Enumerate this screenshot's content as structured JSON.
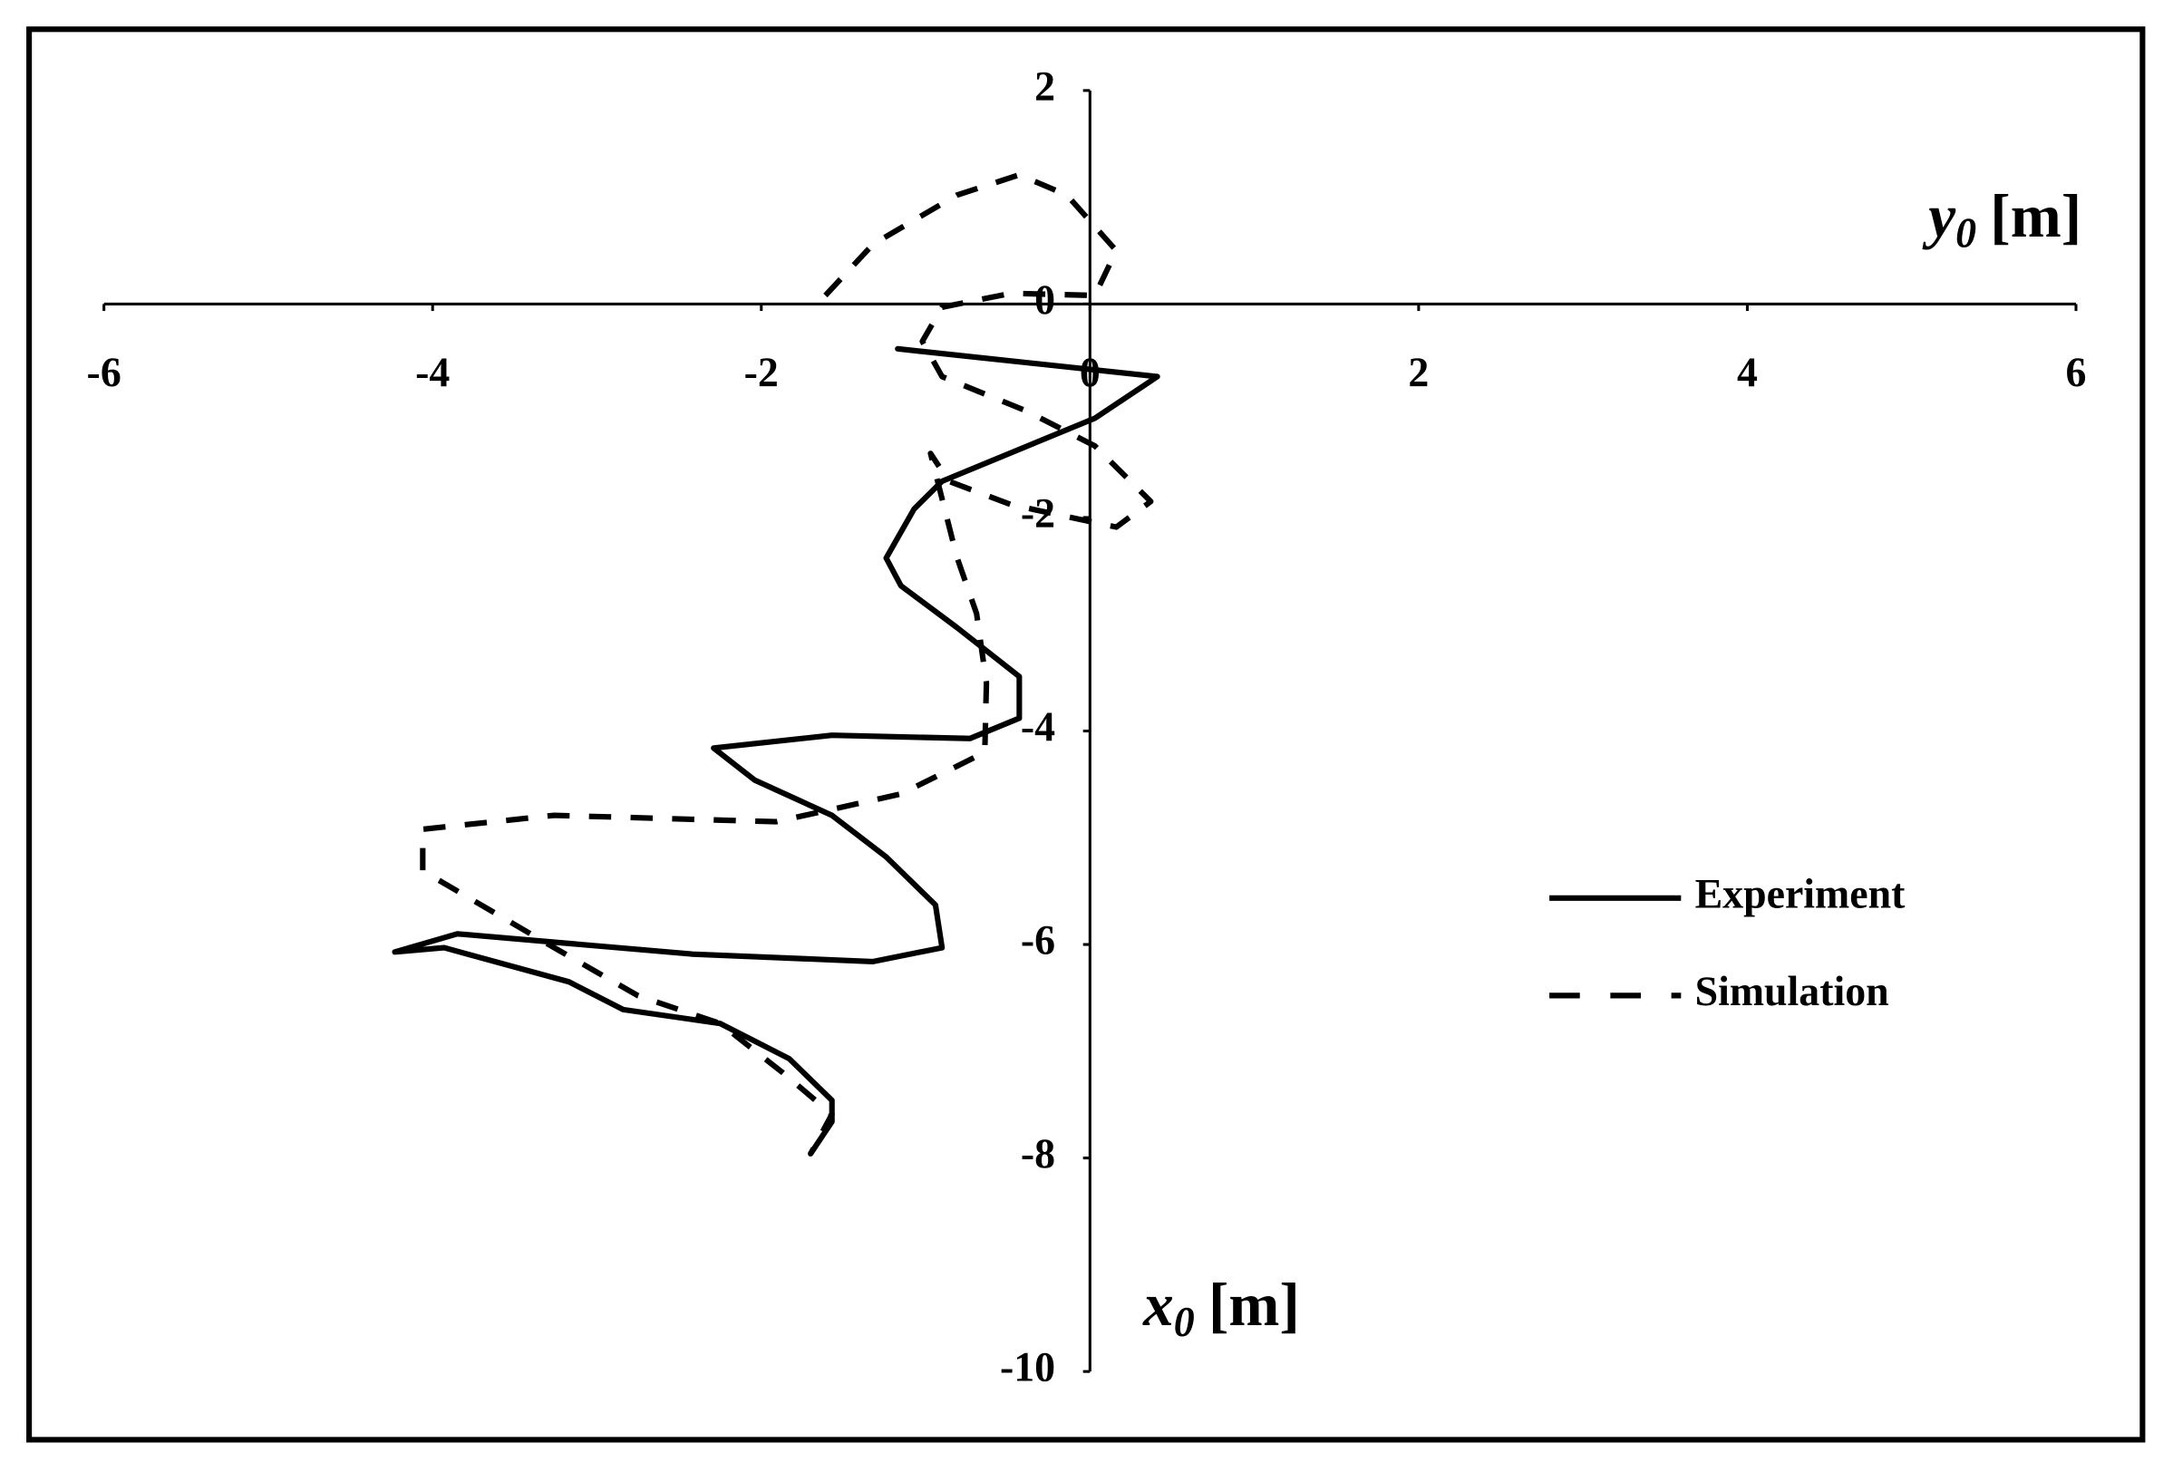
{
  "chart_data": {
    "type": "line",
    "xlabel": {
      "symbol": "y",
      "subscript": "0",
      "unit": "[m]"
    },
    "ylabel": {
      "symbol": "x",
      "subscript": "0",
      "unit": "[m]"
    },
    "xlim": [
      -6,
      6
    ],
    "xticks": [
      -6,
      -4,
      -2,
      0,
      2,
      4,
      6
    ],
    "ylim": [
      -10,
      2
    ],
    "yticks": [
      2,
      0,
      -2,
      -4,
      -6,
      -8,
      -10
    ],
    "grid": false,
    "legend": "right",
    "series": [
      {
        "name": "Experiment",
        "color": "#000000",
        "style": "solid",
        "x": [
          -1.17,
          0.41,
          0.03,
          -0.9,
          -1.07,
          -1.24,
          -1.15,
          -0.81,
          -0.43,
          -0.43,
          -0.73,
          -1.57,
          -2.29,
          -2.04,
          -1.57,
          -1.24,
          -0.94,
          -0.9,
          -1.32,
          -2.42,
          -3.85,
          -4.23,
          -3.93,
          -3.17,
          -2.84,
          -2.25,
          -1.83,
          -1.57,
          -1.57,
          -1.7
        ],
        "values": [
          -0.42,
          -0.68,
          -1.07,
          -1.66,
          -1.92,
          -2.38,
          -2.64,
          -3.03,
          -3.49,
          -3.88,
          -4.07,
          -4.04,
          -4.16,
          -4.46,
          -4.79,
          -5.18,
          -5.63,
          -6.03,
          -6.16,
          -6.09,
          -5.9,
          -6.07,
          -6.03,
          -6.35,
          -6.61,
          -6.74,
          -7.07,
          -7.46,
          -7.66,
          -7.96
        ]
      },
      {
        "name": "Simulation",
        "color": "#000000",
        "style": "dashed",
        "x": [
          -1.61,
          -1.32,
          -0.81,
          -0.43,
          -0.14,
          0.16,
          0.03,
          -0.48,
          -0.9,
          -1.02,
          -0.9,
          -0.39,
          0.03,
          0.37,
          0.16,
          -0.48,
          -0.86,
          -0.97,
          -0.81,
          -0.69,
          -0.63,
          -0.64,
          -1.15,
          -1.91,
          -3.26,
          -4.06,
          -4.06,
          -3.26,
          -2.75,
          -2.25,
          -1.87,
          -1.57,
          -1.7
        ],
        "values": [
          0.08,
          0.56,
          1.02,
          1.21,
          1.02,
          0.5,
          0.08,
          0.1,
          -0.03,
          -0.35,
          -0.68,
          -1.0,
          -1.33,
          -1.85,
          -2.09,
          -1.88,
          -1.66,
          -1.4,
          -2.37,
          -2.9,
          -3.55,
          -4.2,
          -4.59,
          -4.85,
          -4.79,
          -4.92,
          -5.31,
          -6.03,
          -6.48,
          -6.74,
          -7.2,
          -7.59,
          -7.96
        ]
      }
    ]
  }
}
